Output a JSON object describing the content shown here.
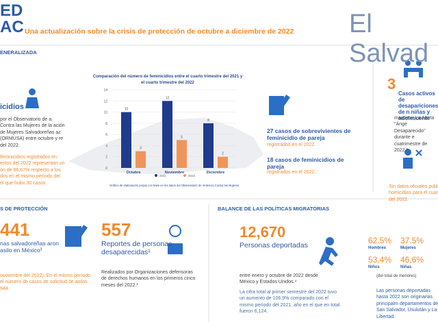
{
  "header": {
    "logo": [
      "ED",
      "AC"
    ],
    "subtitle": "Una actualización sobre la crisis de protección de octubre a diciembre de 2022",
    "country": "El Salvad"
  },
  "left": {
    "heading": "ENERALIZADA",
    "title": "icidios",
    "text": "por el Observatorio de a. Contra las Mujeres de la ación de Mujeres Salvadoreñas az (ORMUSA) entre octubre y re del 2022.",
    "highlight": "feminicidios registrados en estos del 2022 representan un ón de 66,67% respecto a los dos en el mismo período del el que hubo 30 casos."
  },
  "chart_data": {
    "type": "bar",
    "title": "Comparación del número de feminicidios entre el cuarto trimestre del 2021 y el cuarto trimestre del 2022",
    "categories": [
      "Octubre",
      "Noviembre",
      "Diciembre"
    ],
    "series": [
      {
        "name": "2021",
        "color": "#1f3b8c",
        "values": [
          10,
          12,
          8
        ]
      },
      {
        "name": "2022",
        "color": "#f0955a",
        "values": [
          3,
          5,
          2
        ]
      }
    ],
    "ylim": [
      0,
      14
    ],
    "yticks": [
      0,
      2,
      4,
      6,
      8,
      10,
      12,
      14
    ],
    "grid": true,
    "note": "Gráfico de elaboración propia con base en los datos del Observatorio de Violencia Contra las Mujeres"
  },
  "middle": {
    "items": [
      {
        "title": "27 casos de sobrevivientes de feminicidio de pareja",
        "text": "registrados en el 2022."
      },
      {
        "title": "18 casos de feminicidios de pareja",
        "text": "registrados en el 2022."
      }
    ]
  },
  "right": {
    "number": "3",
    "title": "Casos activos de desapariciones de n niñas y adolescente",
    "text": "mantiene La Alerta \"Ánge Desaparecido\" durante e cuatrimestre de 2022.²",
    "note": "Sin datos oficiales publi homicidios para el cuart del 2022."
  },
  "protection": {
    "heading": "S DE PROTECCIÓN",
    "number": "441",
    "title": "nas salvadoreñas aron asilo en México³",
    "text": "noviembre del 2022). En el mismo período el número de casos de solicitud de asilos 944."
  },
  "reports": {
    "number": "557",
    "title": "Reportes de personas desaparecidas¹",
    "text": "Realizados por Organizaciones defensoras de derechos humanos en los primeros cinco meses del 2022.¹"
  },
  "migration": {
    "heading": "BALANCE DE LAS POLÍTICAS MIGRATORIAS",
    "number": "12,670",
    "title": "Personas deportadas",
    "text": "entre enero y octubre de 2022 desde México y Estados Unidos.⁴",
    "detail": "La cifra total al primer semestre del 2022 tuvo un aumento de 106,9% comparado con el mismo período del 2021, año en el que en total fueron 6,124."
  },
  "stats": {
    "items": [
      {
        "value": "62.5%",
        "label": "Hombres"
      },
      {
        "value": "37.5%",
        "label": "Mujeres"
      },
      {
        "value": "53,4%",
        "label": "Niños"
      },
      {
        "value": "46,6%",
        "label": "Niñas"
      }
    ],
    "note": "(del total de menores)",
    "text": "Las personas deportadas hasta 2022 son originarias principalm departamentos de San Salvador, Usulután y La Libertad."
  }
}
